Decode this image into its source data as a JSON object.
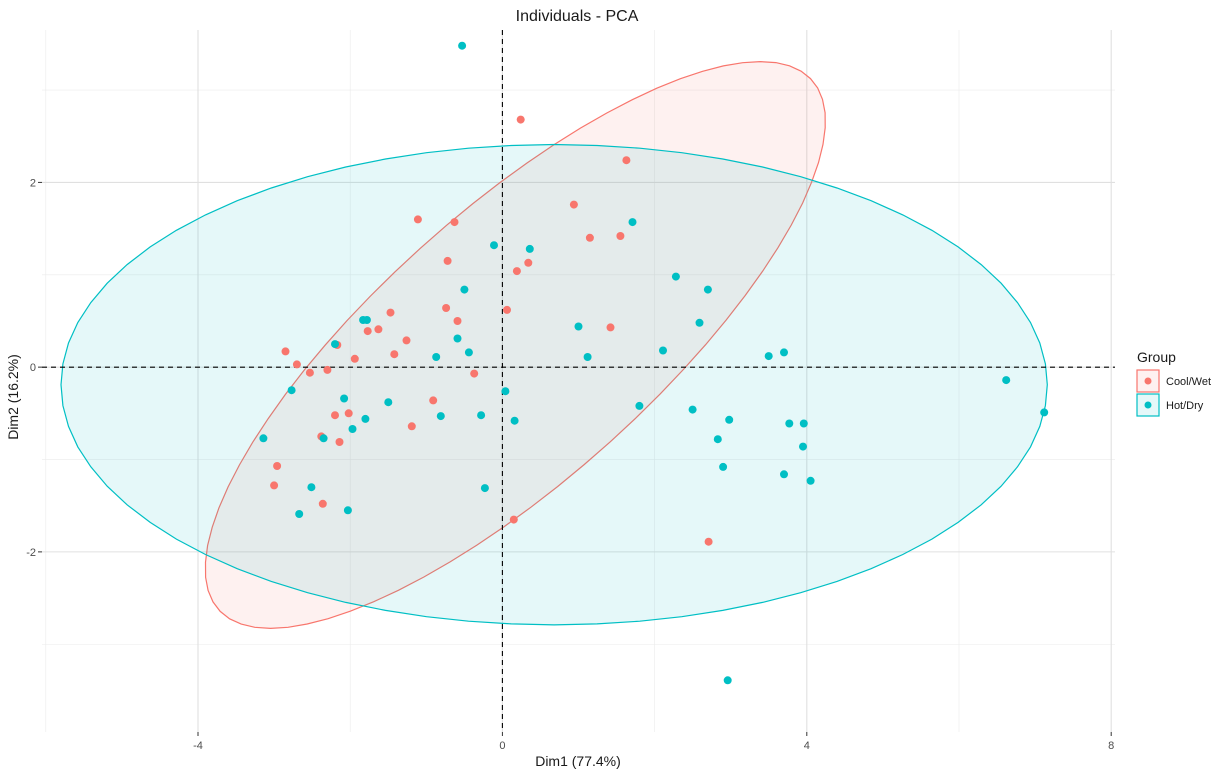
{
  "chart_data": {
    "type": "scatter",
    "title": "Individuals - PCA",
    "xlabel": "Dim1 (77.4%)",
    "ylabel": "Dim2 (16.2%)",
    "xlim": [
      -6.05,
      8.05
    ],
    "ylim": [
      -3.95,
      3.65
    ],
    "x_ticks": [
      -4,
      0,
      4,
      8
    ],
    "y_ticks": [
      -2,
      0,
      2
    ],
    "x_tick_labels": [
      "-4",
      "0",
      "4",
      "8"
    ],
    "y_tick_labels": [
      "-2",
      "0",
      "2"
    ],
    "grid": true,
    "reference_lines": {
      "x": 0,
      "y": 0,
      "style": "dashed"
    },
    "legend": {
      "title": "Group",
      "position": "right"
    },
    "series": [
      {
        "name": "Cool/Wet",
        "color": "#F8766D",
        "ellipse": {
          "center": [
            0.17,
            0.24
          ],
          "rx_axis": 4.85,
          "ry_axis": 1.58,
          "angle_deg": 35
        },
        "points": [
          [
            0.24,
            2.68
          ],
          [
            1.63,
            2.24
          ],
          [
            0.94,
            1.76
          ],
          [
            -1.11,
            1.6
          ],
          [
            -0.63,
            1.57
          ],
          [
            1.15,
            1.4
          ],
          [
            1.55,
            1.42
          ],
          [
            -0.72,
            1.15
          ],
          [
            0.34,
            1.13
          ],
          [
            0.19,
            1.04
          ],
          [
            -0.74,
            0.64
          ],
          [
            -1.47,
            0.59
          ],
          [
            0.06,
            0.62
          ],
          [
            -0.59,
            0.5
          ],
          [
            -1.63,
            0.41
          ],
          [
            -1.77,
            0.39
          ],
          [
            -1.26,
            0.29
          ],
          [
            -2.17,
            0.24
          ],
          [
            1.42,
            0.43
          ],
          [
            -2.85,
            0.17
          ],
          [
            -1.42,
            0.14
          ],
          [
            -1.94,
            0.09
          ],
          [
            -2.7,
            0.03
          ],
          [
            -2.53,
            -0.06
          ],
          [
            -2.3,
            -0.03
          ],
          [
            -0.37,
            -0.07
          ],
          [
            -0.91,
            -0.36
          ],
          [
            -2.2,
            -0.52
          ],
          [
            -2.02,
            -0.5
          ],
          [
            -1.19,
            -0.64
          ],
          [
            -2.38,
            -0.75
          ],
          [
            -2.14,
            -0.81
          ],
          [
            -2.96,
            -1.07
          ],
          [
            -3.0,
            -1.28
          ],
          [
            -2.36,
            -1.48
          ],
          [
            0.15,
            -1.65
          ],
          [
            2.71,
            -1.89
          ]
        ]
      },
      {
        "name": "Hot/Dry",
        "color": "#00BFC4",
        "ellipse": {
          "center": [
            0.68,
            -0.19
          ],
          "rx_axis": 6.48,
          "ry_axis": 2.6,
          "angle_deg": 0
        },
        "points": [
          [
            -0.53,
            3.48
          ],
          [
            1.71,
            1.57
          ],
          [
            -0.11,
            1.32
          ],
          [
            0.36,
            1.28
          ],
          [
            2.28,
            0.98
          ],
          [
            -0.5,
            0.84
          ],
          [
            2.7,
            0.84
          ],
          [
            -1.78,
            0.51
          ],
          [
            -1.83,
            0.51
          ],
          [
            1.0,
            0.44
          ],
          [
            2.59,
            0.48
          ],
          [
            -0.59,
            0.31
          ],
          [
            -2.2,
            0.25
          ],
          [
            -0.44,
            0.16
          ],
          [
            -0.87,
            0.11
          ],
          [
            1.12,
            0.11
          ],
          [
            2.11,
            0.18
          ],
          [
            3.5,
            0.12
          ],
          [
            3.7,
            0.16
          ],
          [
            6.62,
            -0.14
          ],
          [
            -2.77,
            -0.25
          ],
          [
            0.04,
            -0.26
          ],
          [
            -2.08,
            -0.34
          ],
          [
            -1.5,
            -0.38
          ],
          [
            -1.8,
            -0.56
          ],
          [
            -0.28,
            -0.52
          ],
          [
            -0.81,
            -0.53
          ],
          [
            0.16,
            -0.58
          ],
          [
            1.8,
            -0.42
          ],
          [
            2.5,
            -0.46
          ],
          [
            2.98,
            -0.57
          ],
          [
            3.77,
            -0.61
          ],
          [
            3.96,
            -0.61
          ],
          [
            7.12,
            -0.49
          ],
          [
            -1.97,
            -0.67
          ],
          [
            -3.14,
            -0.77
          ],
          [
            -2.35,
            -0.77
          ],
          [
            2.83,
            -0.78
          ],
          [
            3.95,
            -0.86
          ],
          [
            2.9,
            -1.08
          ],
          [
            3.7,
            -1.16
          ],
          [
            4.05,
            -1.23
          ],
          [
            -2.51,
            -1.3
          ],
          [
            -0.23,
            -1.31
          ],
          [
            -2.03,
            -1.55
          ],
          [
            -2.67,
            -1.59
          ],
          [
            2.96,
            -3.39
          ]
        ]
      }
    ]
  }
}
